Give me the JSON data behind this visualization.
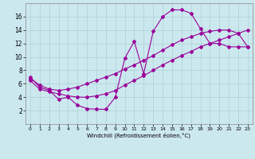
{
  "xlabel": "Windchill (Refroidissement éolien,°C)",
  "bg_color": "#cce8ef",
  "grid_color": "#b0d4d8",
  "line_color": "#990099",
  "xlim": [
    -0.5,
    23.5
  ],
  "ylim": [
    0,
    18
  ],
  "xticks": [
    0,
    1,
    2,
    3,
    4,
    5,
    6,
    7,
    8,
    9,
    10,
    11,
    12,
    13,
    14,
    15,
    16,
    17,
    18,
    19,
    20,
    21,
    22,
    23
  ],
  "yticks": [
    2,
    4,
    6,
    8,
    10,
    12,
    14,
    16
  ],
  "series1_x": [
    0,
    1,
    2,
    3,
    4,
    5,
    6,
    7,
    8,
    9,
    10,
    11,
    12,
    13,
    14,
    15,
    16,
    17,
    18,
    19,
    20,
    21,
    22,
    23
  ],
  "series1_y": [
    7.0,
    5.5,
    5.0,
    3.7,
    4.0,
    2.8,
    2.3,
    2.2,
    2.2,
    4.0,
    9.8,
    12.3,
    7.5,
    13.8,
    16.0,
    17.0,
    17.0,
    16.5,
    14.2,
    12.0,
    12.0,
    11.5,
    11.5,
    11.5
  ],
  "series2_x": [
    0,
    1,
    2,
    3,
    4,
    5,
    6,
    7,
    8,
    9,
    10,
    11,
    12,
    13,
    14,
    15,
    16,
    17,
    18,
    19,
    20,
    21,
    22,
    23
  ],
  "series2_y": [
    6.8,
    5.8,
    5.2,
    5.0,
    5.2,
    5.5,
    6.0,
    6.5,
    7.0,
    7.5,
    8.2,
    8.8,
    9.5,
    10.2,
    11.0,
    11.8,
    12.5,
    13.0,
    13.5,
    13.8,
    14.0,
    14.0,
    13.5,
    11.5
  ],
  "series3_x": [
    0,
    1,
    2,
    3,
    4,
    5,
    6,
    7,
    8,
    9,
    10,
    11,
    12,
    13,
    14,
    15,
    16,
    17,
    18,
    19,
    20,
    21,
    22,
    23
  ],
  "series3_y": [
    6.5,
    5.2,
    4.8,
    4.5,
    4.2,
    4.0,
    4.0,
    4.2,
    4.5,
    5.0,
    5.8,
    6.5,
    7.2,
    8.0,
    8.8,
    9.5,
    10.2,
    10.8,
    11.5,
    12.0,
    12.5,
    13.0,
    13.5,
    14.0
  ]
}
